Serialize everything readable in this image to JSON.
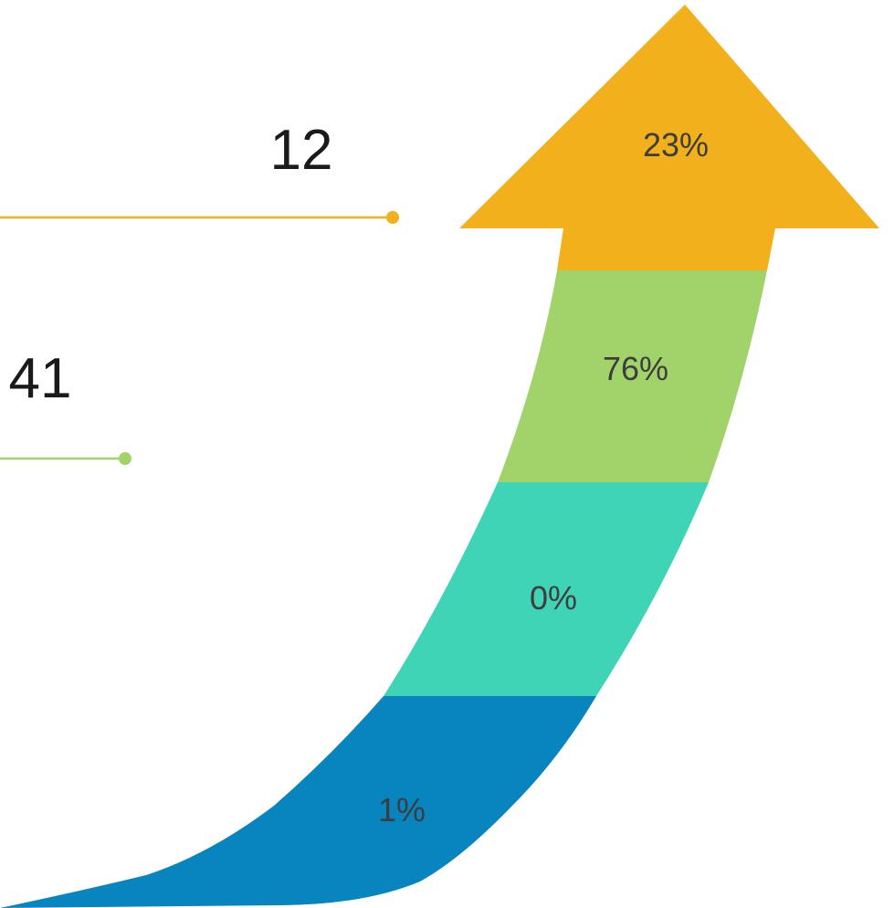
{
  "callouts": [
    {
      "value": "12",
      "color": "#F2B01C"
    },
    {
      "value": "41",
      "color": "#A2D36A"
    }
  ],
  "arrow": {
    "segments": [
      {
        "label": "23%",
        "color": "#F2B01C"
      },
      {
        "label": "76%",
        "color": "#A2D36A"
      },
      {
        "label": "0%",
        "color": "#3FD4B6"
      },
      {
        "label": "1%",
        "color": "#0884BE"
      }
    ]
  }
}
